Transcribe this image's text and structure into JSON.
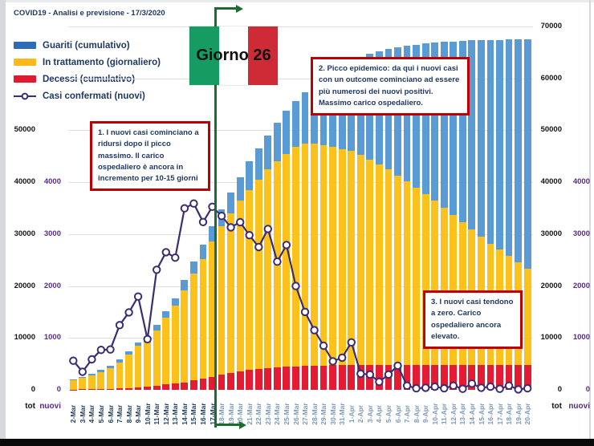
{
  "title": "COVID19 - Analisi e previsione - 17/3/2020",
  "legend": [
    {
      "label": "Guariti (cumulativo)",
      "color": "#2e6cb5",
      "type": "bar"
    },
    {
      "label": "In trattamento (giornaliero)",
      "color": "#ffb81c",
      "type": "bar"
    },
    {
      "label": "Decessi (cumulativo)",
      "color": "#e01a31",
      "type": "bar"
    },
    {
      "label": "Casi confermati (nuovi)",
      "color": "#3b2d71",
      "type": "line"
    }
  ],
  "day_marker": {
    "label": "Giorno 26",
    "flag_colors": [
      "#169b62",
      "#ffffff",
      "#ce2b37"
    ],
    "line_color": "#1d6b30"
  },
  "annotations": [
    {
      "id": 1,
      "text": "1. I nuovi casi cominciano a ridursi dopo il picco massimo. Il carico ospedaliero è ancora in incremento per 10-15 giorni"
    },
    {
      "id": 2,
      "text": "2. Picco epidemico: da qui i nuovi casi con un outcome cominciano ad essere più numerosi dei nuovi positivi. Massimo carico ospedaliero."
    },
    {
      "id": 3,
      "text": "3. I nuovi casi tendono a zero. Carico ospedaliero ancora elevato."
    }
  ],
  "axes": {
    "tot_axis_max": 70000,
    "nuovi_axis_max": 7000,
    "left_tot_label": "tot",
    "left_nuovi_label": "nuovi",
    "right_tot_label": "tot",
    "right_nuovi_label": "nuovi",
    "left_tot_ticks": [
      0,
      10000,
      20000,
      30000,
      40000,
      50000
    ],
    "left_nuovi_ticks": [
      0,
      1000,
      2000,
      3000,
      4000
    ],
    "right_tot_ticks": [
      0,
      10000,
      20000,
      30000,
      40000,
      50000,
      60000,
      70000
    ],
    "right_nuovi_ticks": [
      0,
      1000,
      2000,
      3000,
      4000
    ]
  },
  "colors": {
    "bar_guariti": "#5b9bd5",
    "bar_trattamento": "#fcc21b",
    "bar_decessi": "#e51b33",
    "line_nuovi": "#3b2d71",
    "marker_fill": "#ffffff",
    "grid": "#e0e0e0",
    "date_real": "#24405f",
    "date_forecast": "#7d9ab8",
    "annotation_border": "#c00000",
    "text_navy": "#1f3864"
  },
  "chart_data": {
    "type": "bar",
    "stacked": true,
    "title": "COVID19 - Analisi e previsione - 17/3/2020",
    "xlabel": "",
    "ylabel_left": "tot / nuovi",
    "ylabel_right": "tot / nuovi",
    "ylim_tot": [
      0,
      70000
    ],
    "ylim_nuovi": [
      0,
      7000
    ],
    "grid": true,
    "legend_position": "top-left",
    "forecast_start_index": 16,
    "categories": [
      "2-Mar",
      "3-Mar",
      "4-Mar",
      "5-Mar",
      "6-Mar",
      "7-Mar",
      "8-Mar",
      "9-Mar",
      "10-Mar",
      "11-Mar",
      "12-Mar",
      "13-Mar",
      "14-Mar",
      "15-Mar",
      "16-Mar",
      "17-Mar",
      "18-Mar",
      "19-Mar",
      "20-Mar",
      "21-Mar",
      "22-Mar",
      "23-Mar",
      "24-Mar",
      "25-Mar",
      "26-Mar",
      "27-Mar",
      "28-Mar",
      "29-Mar",
      "30-Mar",
      "31-Mar",
      "1-Apr",
      "2-Apr",
      "3-Apr",
      "4-Apr",
      "5-Apr",
      "6-Apr",
      "7-Apr",
      "8-Apr",
      "9-Apr",
      "10-Apr",
      "11-Apr",
      "12-Apr",
      "13-Apr",
      "14-Apr",
      "15-Apr",
      "16-Apr",
      "17-Apr",
      "18-Apr",
      "19-Apr",
      "20-Apr"
    ],
    "series": [
      {
        "name": "Decessi (cumulativo)",
        "type": "bar-segment-bottom",
        "axis": "tot",
        "values": [
          52,
          79,
          107,
          148,
          197,
          233,
          366,
          463,
          631,
          827,
          1016,
          1266,
          1441,
          1809,
          2158,
          2503,
          2900,
          3250,
          3550,
          3800,
          4000,
          4200,
          4350,
          4450,
          4550,
          4600,
          4650,
          4700,
          4720,
          4740,
          4750,
          4760,
          4770,
          4780,
          4790,
          4800,
          4800,
          4800,
          4800,
          4800,
          4800,
          4800,
          4800,
          4800,
          4800,
          4800,
          4800,
          4800,
          4800,
          4800
        ]
      },
      {
        "name": "In trattamento (giornaliero)",
        "type": "bar-segment-middle",
        "axis": "tot",
        "values": [
          1835,
          2263,
          2706,
          3296,
          3916,
          5061,
          6387,
          7985,
          8514,
          10590,
          12839,
          14955,
          17750,
          20603,
          23073,
          26062,
          28600,
          30750,
          32950,
          34700,
          36500,
          38300,
          39650,
          41050,
          42250,
          42900,
          42850,
          42500,
          42080,
          41660,
          41250,
          40440,
          39530,
          38620,
          37710,
          36500,
          35300,
          34100,
          32900,
          31700,
          30300,
          28900,
          27500,
          26100,
          24700,
          23400,
          22200,
          21000,
          19700,
          18500
        ]
      },
      {
        "name": "Guariti (cumulativo)",
        "type": "bar-segment-top",
        "axis": "tot",
        "values": [
          149,
          160,
          276,
          414,
          523,
          589,
          622,
          724,
          1004,
          1045,
          1258,
          1439,
          1966,
          2335,
          2749,
          2941,
          3200,
          4000,
          4500,
          5500,
          6000,
          6500,
          7500,
          8200,
          8900,
          9900,
          11400,
          13000,
          14600,
          16000,
          17300,
          18900,
          20400,
          21800,
          23100,
          24700,
          26200,
          27600,
          29000,
          30400,
          31900,
          33400,
          34900,
          36400,
          37850,
          39200,
          40450,
          41700,
          43020,
          44250
        ]
      },
      {
        "name": "Casi confermati (nuovi)",
        "type": "line",
        "axis": "nuovi",
        "values": [
          561,
          347,
          587,
          769,
          778,
          1247,
          1492,
          1797,
          977,
          2313,
          2651,
          2547,
          3497,
          3590,
          3233,
          3526,
          3350,
          3130,
          3230,
          2980,
          2750,
          3100,
          2470,
          2790,
          2000,
          1500,
          1150,
          850,
          550,
          620,
          915,
          310,
          295,
          155,
          295,
          465,
          80,
          30,
          40,
          60,
          30,
          80,
          20,
          120,
          40,
          60,
          20,
          80,
          10,
          30
        ]
      }
    ]
  }
}
